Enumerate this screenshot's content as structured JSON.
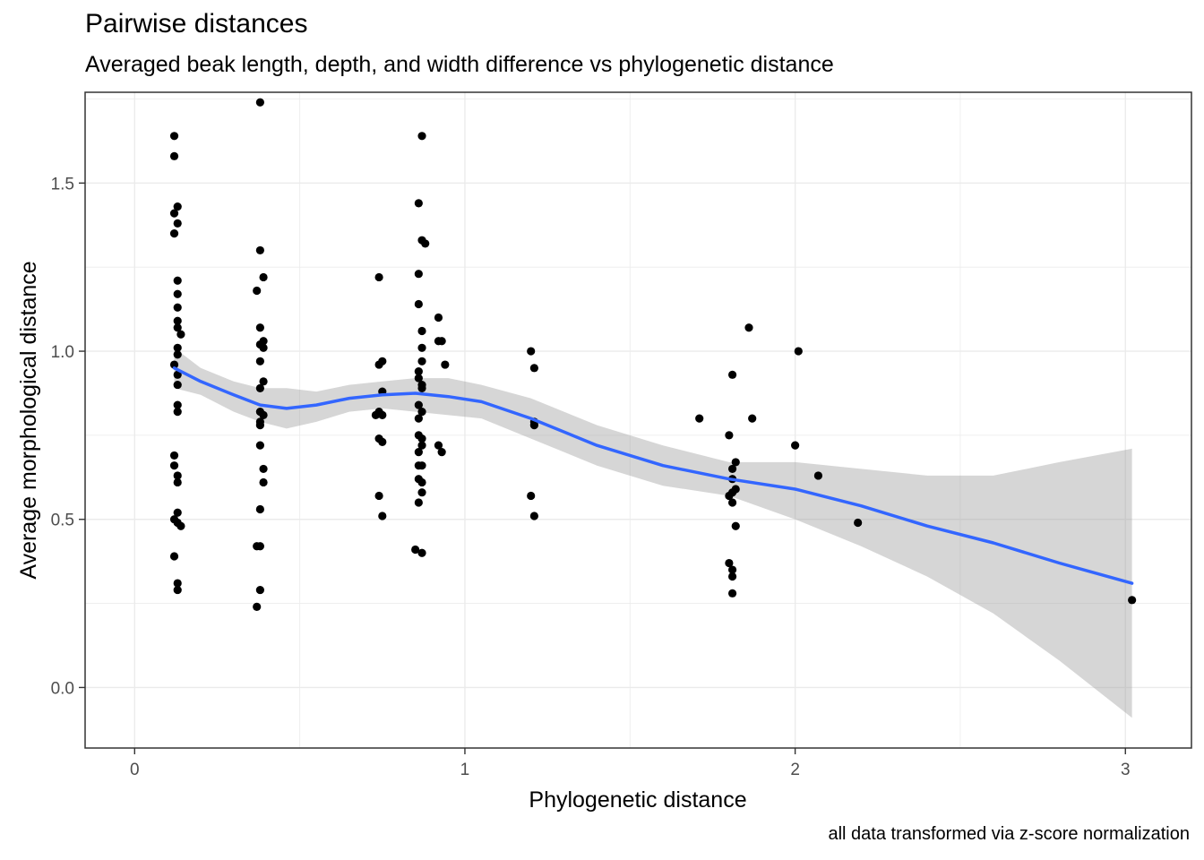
{
  "chart_data": {
    "type": "scatter",
    "title": "Pairwise distances",
    "subtitle": "Averaged beak length, depth, and width difference vs phylogenetic distance",
    "caption": "all data transformed via z-score normalization",
    "xlabel": "Phylogenetic distance",
    "ylabel": "Average morphological distance",
    "xlim": [
      -0.15,
      3.2
    ],
    "ylim": [
      -0.18,
      1.77
    ],
    "x_ticks": [
      0,
      1,
      2,
      3
    ],
    "x_tick_labels": [
      "0",
      "1",
      "2",
      "3"
    ],
    "y_ticks": [
      0.0,
      0.5,
      1.0,
      1.5
    ],
    "y_tick_labels": [
      "0.0",
      "0.5",
      "1.0",
      "1.5"
    ],
    "grid": true,
    "points": [
      {
        "x": 0.12,
        "y": 1.64
      },
      {
        "x": 0.12,
        "y": 1.58
      },
      {
        "x": 0.13,
        "y": 1.43
      },
      {
        "x": 0.12,
        "y": 1.41
      },
      {
        "x": 0.13,
        "y": 1.38
      },
      {
        "x": 0.12,
        "y": 1.35
      },
      {
        "x": 0.13,
        "y": 1.21
      },
      {
        "x": 0.13,
        "y": 1.17
      },
      {
        "x": 0.13,
        "y": 1.13
      },
      {
        "x": 0.13,
        "y": 1.09
      },
      {
        "x": 0.13,
        "y": 1.07
      },
      {
        "x": 0.14,
        "y": 1.05
      },
      {
        "x": 0.13,
        "y": 1.01
      },
      {
        "x": 0.13,
        "y": 0.99
      },
      {
        "x": 0.12,
        "y": 0.96
      },
      {
        "x": 0.13,
        "y": 0.93
      },
      {
        "x": 0.13,
        "y": 0.9
      },
      {
        "x": 0.13,
        "y": 0.84
      },
      {
        "x": 0.13,
        "y": 0.82
      },
      {
        "x": 0.12,
        "y": 0.69
      },
      {
        "x": 0.12,
        "y": 0.66
      },
      {
        "x": 0.13,
        "y": 0.63
      },
      {
        "x": 0.13,
        "y": 0.61
      },
      {
        "x": 0.13,
        "y": 0.52
      },
      {
        "x": 0.12,
        "y": 0.5
      },
      {
        "x": 0.13,
        "y": 0.49
      },
      {
        "x": 0.14,
        "y": 0.48
      },
      {
        "x": 0.12,
        "y": 0.39
      },
      {
        "x": 0.13,
        "y": 0.31
      },
      {
        "x": 0.13,
        "y": 0.29
      },
      {
        "x": 0.38,
        "y": 1.74
      },
      {
        "x": 0.38,
        "y": 1.3
      },
      {
        "x": 0.39,
        "y": 1.22
      },
      {
        "x": 0.37,
        "y": 1.18
      },
      {
        "x": 0.38,
        "y": 1.07
      },
      {
        "x": 0.39,
        "y": 1.03
      },
      {
        "x": 0.38,
        "y": 1.02
      },
      {
        "x": 0.39,
        "y": 1.01
      },
      {
        "x": 0.38,
        "y": 0.97
      },
      {
        "x": 0.39,
        "y": 0.91
      },
      {
        "x": 0.38,
        "y": 0.89
      },
      {
        "x": 0.38,
        "y": 0.82
      },
      {
        "x": 0.39,
        "y": 0.81
      },
      {
        "x": 0.38,
        "y": 0.79
      },
      {
        "x": 0.38,
        "y": 0.78
      },
      {
        "x": 0.38,
        "y": 0.72
      },
      {
        "x": 0.39,
        "y": 0.65
      },
      {
        "x": 0.39,
        "y": 0.61
      },
      {
        "x": 0.38,
        "y": 0.53
      },
      {
        "x": 0.38,
        "y": 0.42
      },
      {
        "x": 0.37,
        "y": 0.42
      },
      {
        "x": 0.38,
        "y": 0.29
      },
      {
        "x": 0.37,
        "y": 0.24
      },
      {
        "x": 0.74,
        "y": 1.22
      },
      {
        "x": 0.75,
        "y": 0.97
      },
      {
        "x": 0.74,
        "y": 0.96
      },
      {
        "x": 0.75,
        "y": 0.88
      },
      {
        "x": 0.74,
        "y": 0.82
      },
      {
        "x": 0.75,
        "y": 0.81
      },
      {
        "x": 0.73,
        "y": 0.81
      },
      {
        "x": 0.74,
        "y": 0.74
      },
      {
        "x": 0.75,
        "y": 0.73
      },
      {
        "x": 0.74,
        "y": 0.57
      },
      {
        "x": 0.75,
        "y": 0.51
      },
      {
        "x": 0.87,
        "y": 1.64
      },
      {
        "x": 0.86,
        "y": 1.44
      },
      {
        "x": 0.87,
        "y": 1.33
      },
      {
        "x": 0.88,
        "y": 1.32
      },
      {
        "x": 0.86,
        "y": 1.23
      },
      {
        "x": 0.86,
        "y": 1.14
      },
      {
        "x": 0.87,
        "y": 1.06
      },
      {
        "x": 0.87,
        "y": 1.01
      },
      {
        "x": 0.87,
        "y": 0.97
      },
      {
        "x": 0.86,
        "y": 0.94
      },
      {
        "x": 0.86,
        "y": 0.92
      },
      {
        "x": 0.87,
        "y": 0.9
      },
      {
        "x": 0.87,
        "y": 0.89
      },
      {
        "x": 0.86,
        "y": 0.84
      },
      {
        "x": 0.87,
        "y": 0.82
      },
      {
        "x": 0.86,
        "y": 0.8
      },
      {
        "x": 0.86,
        "y": 0.75
      },
      {
        "x": 0.87,
        "y": 0.74
      },
      {
        "x": 0.87,
        "y": 0.72
      },
      {
        "x": 0.86,
        "y": 0.7
      },
      {
        "x": 0.86,
        "y": 0.66
      },
      {
        "x": 0.87,
        "y": 0.66
      },
      {
        "x": 0.86,
        "y": 0.62
      },
      {
        "x": 0.87,
        "y": 0.61
      },
      {
        "x": 0.87,
        "y": 0.58
      },
      {
        "x": 0.86,
        "y": 0.55
      },
      {
        "x": 0.85,
        "y": 0.41
      },
      {
        "x": 0.87,
        "y": 0.4
      },
      {
        "x": 0.92,
        "y": 1.1
      },
      {
        "x": 0.92,
        "y": 1.03
      },
      {
        "x": 0.93,
        "y": 1.03
      },
      {
        "x": 0.94,
        "y": 0.96
      },
      {
        "x": 0.92,
        "y": 0.72
      },
      {
        "x": 0.93,
        "y": 0.7
      },
      {
        "x": 1.2,
        "y": 1.0
      },
      {
        "x": 1.21,
        "y": 0.95
      },
      {
        "x": 1.21,
        "y": 0.79
      },
      {
        "x": 1.21,
        "y": 0.78
      },
      {
        "x": 1.2,
        "y": 0.57
      },
      {
        "x": 1.21,
        "y": 0.51
      },
      {
        "x": 1.71,
        "y": 0.8
      },
      {
        "x": 1.81,
        "y": 0.93
      },
      {
        "x": 1.8,
        "y": 0.75
      },
      {
        "x": 1.82,
        "y": 0.67
      },
      {
        "x": 1.81,
        "y": 0.65
      },
      {
        "x": 1.81,
        "y": 0.62
      },
      {
        "x": 1.82,
        "y": 0.59
      },
      {
        "x": 1.81,
        "y": 0.58
      },
      {
        "x": 1.8,
        "y": 0.57
      },
      {
        "x": 1.81,
        "y": 0.55
      },
      {
        "x": 1.82,
        "y": 0.48
      },
      {
        "x": 1.8,
        "y": 0.37
      },
      {
        "x": 1.81,
        "y": 0.35
      },
      {
        "x": 1.81,
        "y": 0.33
      },
      {
        "x": 1.81,
        "y": 0.28
      },
      {
        "x": 1.86,
        "y": 1.07
      },
      {
        "x": 1.87,
        "y": 0.8
      },
      {
        "x": 2.01,
        "y": 1.0
      },
      {
        "x": 2.0,
        "y": 0.72
      },
      {
        "x": 2.07,
        "y": 0.63
      },
      {
        "x": 2.19,
        "y": 0.49
      },
      {
        "x": 3.02,
        "y": 0.26
      }
    ],
    "smooth_line": {
      "color": "#3366ff",
      "x": [
        0.12,
        0.2,
        0.3,
        0.38,
        0.46,
        0.55,
        0.65,
        0.75,
        0.85,
        0.95,
        1.05,
        1.2,
        1.4,
        1.6,
        1.8,
        2.0,
        2.2,
        2.4,
        2.6,
        2.8,
        3.02
      ],
      "y": [
        0.95,
        0.91,
        0.87,
        0.84,
        0.83,
        0.84,
        0.86,
        0.87,
        0.875,
        0.865,
        0.85,
        0.8,
        0.72,
        0.66,
        0.62,
        0.59,
        0.54,
        0.48,
        0.43,
        0.37,
        0.31
      ],
      "lower": [
        0.89,
        0.87,
        0.82,
        0.79,
        0.77,
        0.79,
        0.82,
        0.83,
        0.82,
        0.81,
        0.8,
        0.74,
        0.66,
        0.6,
        0.57,
        0.5,
        0.42,
        0.33,
        0.22,
        0.08,
        -0.09
      ],
      "upper": [
        1.01,
        0.95,
        0.91,
        0.89,
        0.89,
        0.88,
        0.9,
        0.91,
        0.92,
        0.92,
        0.9,
        0.86,
        0.78,
        0.72,
        0.67,
        0.67,
        0.65,
        0.63,
        0.63,
        0.67,
        0.71
      ]
    },
    "colors": {
      "points": "#000000",
      "band": "#999999",
      "grid": "#ebebeb",
      "panel_border": "#333333"
    }
  }
}
